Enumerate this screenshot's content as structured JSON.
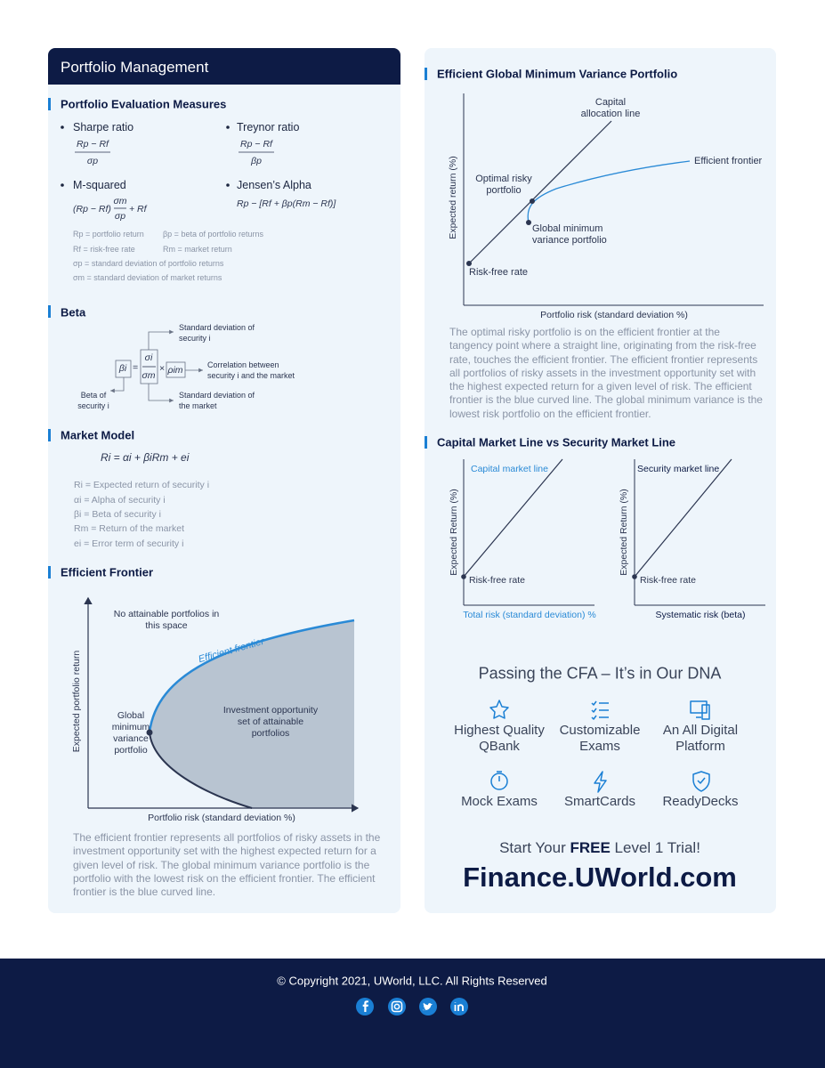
{
  "left": {
    "header": "Portfolio Management",
    "evaluation": {
      "title": "Portfolio Evaluation Measures",
      "sharpe": {
        "name": "Sharpe ratio",
        "numerator": "Rp − Rf",
        "denominator": "σp"
      },
      "treynor": {
        "name": "Treynor ratio",
        "numerator": "Rp − Rf",
        "denominator": "βp"
      },
      "m_squared": {
        "name": "M-squared",
        "prefix": "(Rp − Rf)",
        "numerator": "σm",
        "denominator": "σp",
        "suffix": "+ Rf"
      },
      "jensen": {
        "name": "Jensen’s Alpha",
        "formula": "Rp − [Rf + βp(Rm − Rf)]"
      },
      "legend": [
        "Rp = portfolio return",
        "βp = beta of portfolio returns",
        "Rf = risk-free rate",
        "Rm = market return",
        "σp = standard deviation of portfolio returns",
        "σm = standard deviation of market returns"
      ]
    },
    "beta": {
      "title": "Beta",
      "beta_symbol": "βi",
      "equals": "=",
      "numerator": "σi",
      "denominator": "σm",
      "times": "×",
      "rho": "ρim",
      "label_sd_security": "Standard deviation of security i",
      "label_correlation": "Correlation between security i and the market",
      "label_sd_market": "Standard deviation of the market",
      "label_beta": "Beta of security i"
    },
    "market_model": {
      "title": "Market Model",
      "formula": "Ri = αi + βiRm + ei",
      "definitions": [
        "Ri = Expected return of security i",
        "αi = Alpha of security i",
        "βi = Beta of security i",
        "Rm = Return of the market",
        "ei = Error term of security i"
      ]
    },
    "efficient_frontier": {
      "title": "Efficient Frontier",
      "no_attainable": "No attainable portfolios in this space",
      "curve_label": "Efficient frontier",
      "gmv_label": "Global minimum variance portfolio",
      "opportunity_label": "Investment opportunity set of attainable portfolios",
      "y_label": "Expected portfolio return",
      "x_label": "Portfolio risk (standard deviation %)",
      "paragraph": "The efficient frontier represents all portfolios of risky assets in the investment opportunity set with the highest expected return for a given level of risk. The global minimum variance portfolio is the portfolio with the lowest risk on the efficient frontier. The efficient frontier is the blue curved line."
    }
  },
  "right": {
    "gmv": {
      "title": "Efficient Global Minimum Variance Portfolio",
      "cal_label": "Capital allocation line",
      "frontier_label": "Efficient frontier",
      "optimal_label": "Optimal risky portfolio",
      "gmv_label": "Global minimum variance portfolio",
      "rf_label": "Risk-free rate",
      "y_label": "Expected return (%)",
      "x_label": "Portfolio risk (standard deviation %)",
      "paragraph": "The optimal risky portfolio is on the efficient frontier at the tangency point where a straight line, originating from the risk-free rate, touches the efficient frontier. The efficient frontier represents all portfolios of risky assets in the investment opportunity set with the highest expected return for a given level of risk. The efficient frontier is the blue curved line. The global minimum variance is the lowest risk portfolio on the efficient frontier."
    },
    "cml_sml": {
      "title": "Capital Market Line vs Security Market Line",
      "cml": {
        "line_label": "Capital market line",
        "rf_label": "Risk-free rate",
        "y_label": "Expected Return (%)",
        "x_label": "Total risk (standard deviation) %"
      },
      "sml": {
        "line_label": "Security market line",
        "rf_label": "Risk-free rate",
        "y_label": "Expected Return (%)",
        "x_label": "Systematic risk (beta)"
      }
    },
    "promo": {
      "heading": "Passing the CFA – It’s in Our DNA",
      "features": [
        "Highest Quality QBank",
        "Customizable Exams",
        "An All Digital Platform",
        "Mock Exams",
        "SmartCards",
        "ReadyDecks"
      ],
      "cta_start": "Start Your ",
      "cta_bold": "FREE",
      "cta_end": " Level 1 Trial!",
      "url": "Finance.UWorld.com"
    }
  },
  "footer": {
    "copyright": "© Copyright 2021, UWorld, LLC. All Rights Reserved"
  }
}
